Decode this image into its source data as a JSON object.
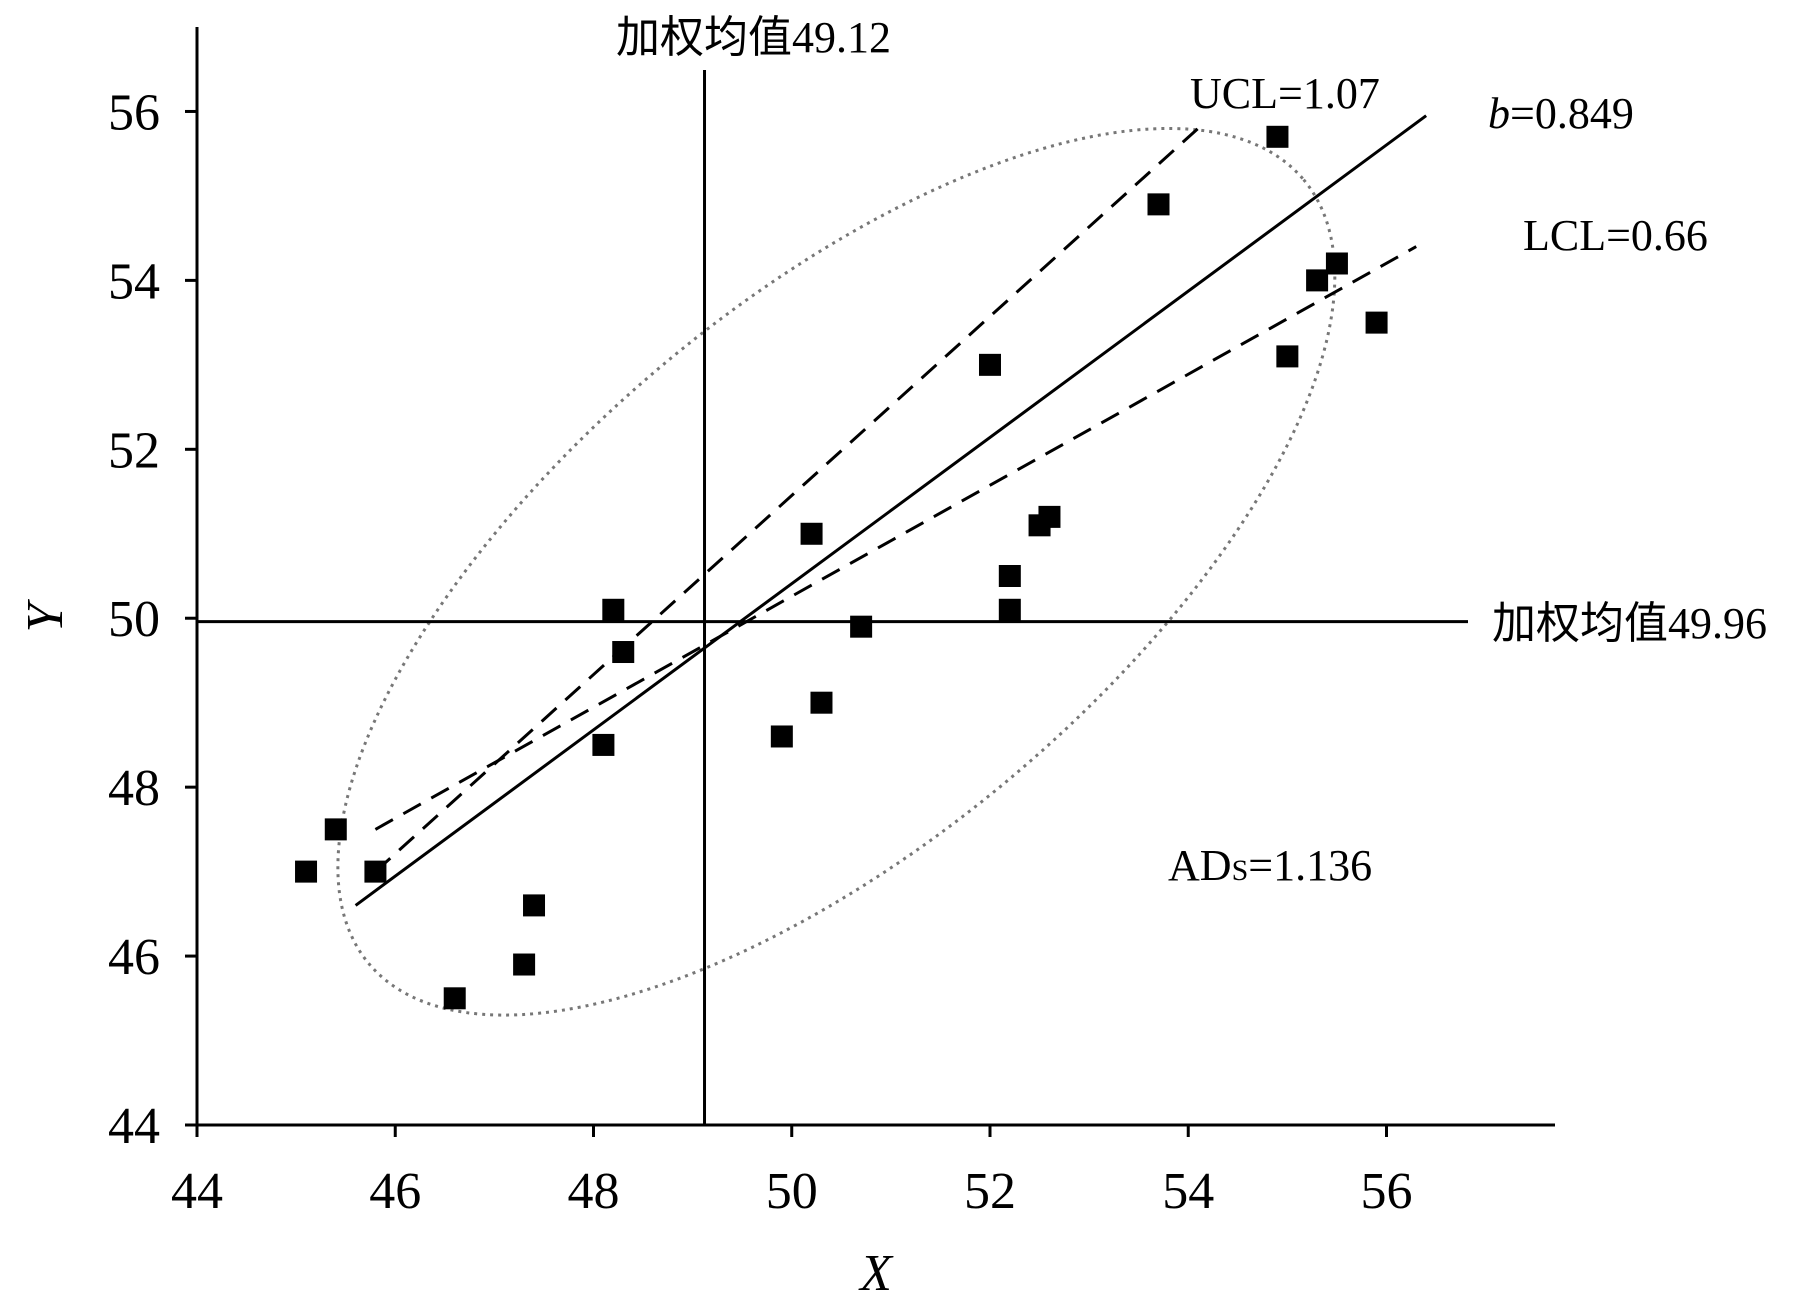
{
  "chart_data": {
    "type": "scatter",
    "title": "",
    "xlabel": "X",
    "ylabel": "Y",
    "xlim": [
      44,
      57.7
    ],
    "ylim": [
      44,
      57
    ],
    "xticks": [
      "44",
      "46",
      "48",
      "50",
      "52",
      "54",
      "56"
    ],
    "yticks": [
      "44",
      "46",
      "48",
      "50",
      "52",
      "54",
      "56"
    ],
    "grid": false,
    "legend": "none",
    "marker": "filled-square",
    "points": [
      {
        "x": 45.1,
        "y": 47.0
      },
      {
        "x": 45.4,
        "y": 47.5
      },
      {
        "x": 45.8,
        "y": 47.0
      },
      {
        "x": 46.6,
        "y": 45.5
      },
      {
        "x": 47.3,
        "y": 45.9
      },
      {
        "x": 47.4,
        "y": 46.6
      },
      {
        "x": 48.1,
        "y": 48.5
      },
      {
        "x": 48.2,
        "y": 50.1
      },
      {
        "x": 48.3,
        "y": 49.6
      },
      {
        "x": 49.9,
        "y": 48.6
      },
      {
        "x": 50.2,
        "y": 51.0
      },
      {
        "x": 50.3,
        "y": 49.0
      },
      {
        "x": 50.7,
        "y": 49.9
      },
      {
        "x": 52.0,
        "y": 53.0
      },
      {
        "x": 52.2,
        "y": 50.1
      },
      {
        "x": 52.2,
        "y": 50.5
      },
      {
        "x": 52.5,
        "y": 51.1
      },
      {
        "x": 52.6,
        "y": 51.2
      },
      {
        "x": 53.7,
        "y": 54.9
      },
      {
        "x": 54.9,
        "y": 55.7
      },
      {
        "x": 55.0,
        "y": 53.1
      },
      {
        "x": 55.3,
        "y": 54.0
      },
      {
        "x": 55.5,
        "y": 54.2
      },
      {
        "x": 55.9,
        "y": 53.5
      }
    ],
    "mean_x": 49.12,
    "mean_y": 49.96,
    "regression_line": {
      "slope": 0.849,
      "from": [
        45.6,
        46.6
      ],
      "to": [
        56.4,
        55.95
      ]
    },
    "ucl_line": {
      "slope": 1.07,
      "from": [
        45.8,
        47.0
      ],
      "to": [
        54.1,
        55.8
      ]
    },
    "lcl_line": {
      "slope": 0.66,
      "from": [
        45.8,
        47.5
      ],
      "to": [
        56.3,
        54.4
      ]
    },
    "ellipse": {
      "center": [
        50.45,
        50.55
      ],
      "angle_deg": -40,
      "a_px": 610,
      "b_px": 270,
      "color": "#777777"
    },
    "annotations": {
      "mean_x_label": "加权均值49.12",
      "mean_y_label": "加权均值49.96",
      "ucl_label": "UCL=1.07",
      "lcl_label": "LCL=0.66",
      "b_symbol": "b",
      "b_value": "=0.849",
      "ad_main": "AD",
      "ad_sub": "S",
      "ad_value": "=1.136"
    }
  }
}
